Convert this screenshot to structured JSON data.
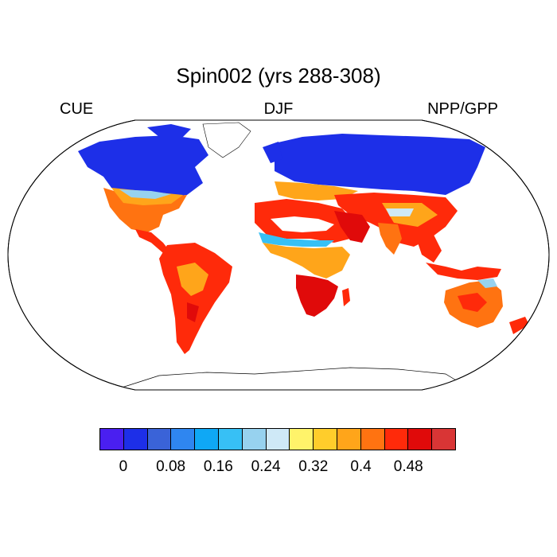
{
  "title": "Spin002 (yrs 288-308)",
  "left_label": "CUE",
  "center_label": "DJF",
  "right_label": "NPP/GPP",
  "colorbar": {
    "colors": [
      "#4a1ff0",
      "#1d2fe8",
      "#3a63d8",
      "#2f86f0",
      "#0fa8f5",
      "#37c0f5",
      "#97d2ef",
      "#cfe9f7",
      "#fff36a",
      "#ffcd2b",
      "#ffa51a",
      "#ff7311",
      "#ff2a0a",
      "#e00a0a",
      "#d93535"
    ],
    "tick_labels": [
      "0",
      "0.08",
      "0.16",
      "0.24",
      "0.32",
      "0.4",
      "0.48"
    ]
  }
}
